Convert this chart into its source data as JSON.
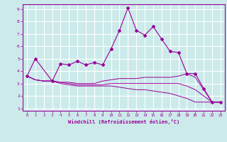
{
  "title": "",
  "xlabel": "Windchill (Refroidissement éolien,°C)",
  "ylabel": "",
  "background_color": "#cceaea",
  "grid_color": "#ffffff",
  "line_color": "#990099",
  "xlim": [
    -0.5,
    23.5
  ],
  "ylim": [
    0.8,
    9.4
  ],
  "x_ticks": [
    0,
    1,
    2,
    3,
    4,
    5,
    6,
    7,
    8,
    9,
    10,
    11,
    12,
    13,
    14,
    15,
    16,
    17,
    18,
    19,
    20,
    21,
    22,
    23
  ],
  "y_ticks": [
    1,
    2,
    3,
    4,
    5,
    6,
    7,
    8,
    9
  ],
  "series1_x": [
    0,
    1,
    3,
    4,
    5,
    6,
    7,
    8,
    9,
    10,
    11,
    12,
    13,
    14,
    15,
    16,
    17,
    18,
    19,
    20,
    21,
    22,
    23
  ],
  "series1_y": [
    3.6,
    5.0,
    3.2,
    4.6,
    4.5,
    4.8,
    4.5,
    4.7,
    4.5,
    5.8,
    7.3,
    9.1,
    7.3,
    6.9,
    7.6,
    6.6,
    5.6,
    5.5,
    3.8,
    3.8,
    2.6,
    1.5,
    1.5
  ],
  "series2_x": [
    0,
    1,
    2,
    3,
    4,
    5,
    6,
    7,
    8,
    9,
    10,
    11,
    12,
    13,
    14,
    15,
    16,
    17,
    18,
    19,
    20,
    21,
    22,
    23
  ],
  "series2_y": [
    3.6,
    3.3,
    3.2,
    3.2,
    3.1,
    3.1,
    3.0,
    3.0,
    3.0,
    3.2,
    3.3,
    3.4,
    3.4,
    3.4,
    3.5,
    3.5,
    3.5,
    3.5,
    3.6,
    3.8,
    3.5,
    2.5,
    1.5,
    1.5
  ],
  "series3_x": [
    0,
    1,
    2,
    3,
    4,
    5,
    6,
    7,
    8,
    9,
    10,
    11,
    12,
    13,
    14,
    15,
    16,
    17,
    18,
    19,
    20,
    21,
    22,
    23
  ],
  "series3_y": [
    3.6,
    3.3,
    3.2,
    3.2,
    3.1,
    3.0,
    2.9,
    2.9,
    2.9,
    2.9,
    3.0,
    3.0,
    3.0,
    3.0,
    3.0,
    3.0,
    3.0,
    3.0,
    3.0,
    2.8,
    2.5,
    2.0,
    1.5,
    1.5
  ],
  "series4_x": [
    0,
    1,
    2,
    3,
    4,
    5,
    6,
    7,
    8,
    9,
    10,
    11,
    12,
    13,
    14,
    15,
    16,
    17,
    18,
    19,
    20,
    21,
    22,
    23
  ],
  "series4_y": [
    3.6,
    3.3,
    3.2,
    3.2,
    3.0,
    2.9,
    2.8,
    2.8,
    2.8,
    2.8,
    2.8,
    2.7,
    2.6,
    2.5,
    2.5,
    2.4,
    2.3,
    2.2,
    2.0,
    1.8,
    1.5,
    1.5,
    1.5,
    1.5
  ]
}
